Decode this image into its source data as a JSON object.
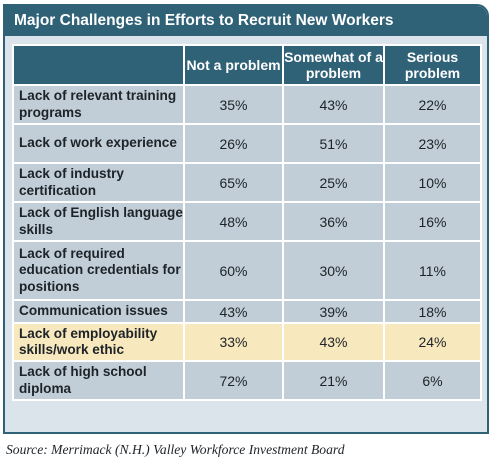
{
  "chart_data": {
    "type": "table",
    "title": "Major Challenges in Efforts to Recruit New Workers",
    "columns": [
      "Not a problem",
      "Somewhat of a problem",
      "Serious problem"
    ],
    "rows": [
      {
        "label": "Lack of relevant training programs",
        "values": [
          "35%",
          "43%",
          "22%"
        ],
        "highlight": false
      },
      {
        "label": "Lack of work experience",
        "values": [
          "26%",
          "51%",
          "23%"
        ],
        "highlight": false
      },
      {
        "label": "Lack of industry certification",
        "values": [
          "65%",
          "25%",
          "10%"
        ],
        "highlight": false
      },
      {
        "label": "Lack of English language skills",
        "values": [
          "48%",
          "36%",
          "16%"
        ],
        "highlight": false
      },
      {
        "label": "Lack of required education credentials for positions",
        "values": [
          "60%",
          "30%",
          "11%"
        ],
        "highlight": false
      },
      {
        "label": "Communication issues",
        "values": [
          "43%",
          "39%",
          "18%"
        ],
        "highlight": false
      },
      {
        "label": "Lack of employability skills/work ethic",
        "values": [
          "33%",
          "43%",
          "24%"
        ],
        "highlight": true
      },
      {
        "label": "Lack of high school diploma",
        "values": [
          "72%",
          "21%",
          "6%"
        ],
        "highlight": false
      }
    ],
    "source": "Source: Merrimack (N.H.) Valley Workforce Investment Board"
  },
  "colors": {
    "header": "#2f6177",
    "row_fill": "#c1ced7",
    "highlight_fill": "#f8e8bd",
    "panel_fill": "#dbe4ea"
  }
}
